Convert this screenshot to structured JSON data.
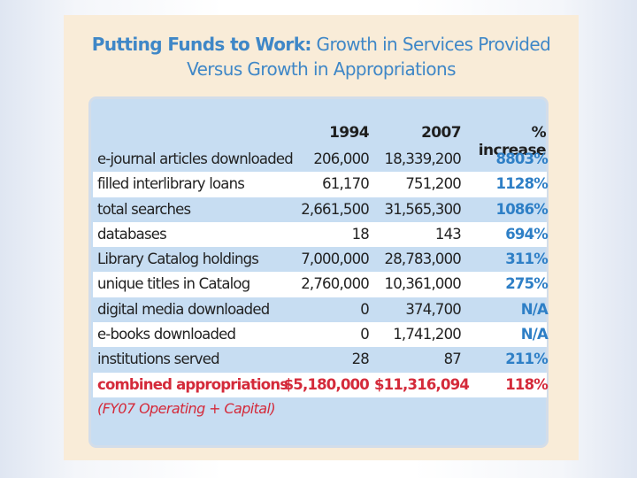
{
  "title": {
    "line1_bold": "Putting Funds to Work:",
    "line1_rest": " Growth in Services Provided",
    "line2": "Versus Growth in Appropriations"
  },
  "table": {
    "headers": [
      "1994",
      "2007",
      "% increase"
    ],
    "rows": [
      {
        "label": "e-journal articles downloaded",
        "v1994": "206,000",
        "v2007": "18,339,200",
        "pct": "8803%"
      },
      {
        "label": "filled interlibrary loans",
        "v1994": "61,170",
        "v2007": "751,200",
        "pct": "1128%"
      },
      {
        "label": "total searches",
        "v1994": "2,661,500",
        "v2007": "31,565,300",
        "pct": "1086%"
      },
      {
        "label": "databases",
        "v1994": "18",
        "v2007": "143",
        "pct": "694%"
      },
      {
        "label": "Library Catalog holdings",
        "v1994": "7,000,000",
        "v2007": "28,783,000",
        "pct": "311%"
      },
      {
        "label": "unique titles in Catalog",
        "v1994": "2,760,000",
        "v2007": "10,361,000",
        "pct": "275%"
      },
      {
        "label": "digital media downloaded",
        "v1994": "0",
        "v2007": "374,700",
        "pct": "N/A"
      },
      {
        "label": "e-books downloaded",
        "v1994": "0",
        "v2007": "1,741,200",
        "pct": "N/A"
      },
      {
        "label": "institutions served",
        "v1994": "28",
        "v2007": "87",
        "pct": "211%"
      },
      {
        "label": "combined appropriations",
        "v1994": "$5,180,000",
        "v2007": "$11,316,094",
        "pct": "118%"
      }
    ],
    "note": "(FY07 Operating + Capital)"
  },
  "colors": {
    "title": "#3f87c7",
    "card_bg": "#c7ddf2",
    "percent": "#2e7fc6",
    "highlight": "#d42a3a",
    "panel_bg": "#f9ecd8"
  }
}
